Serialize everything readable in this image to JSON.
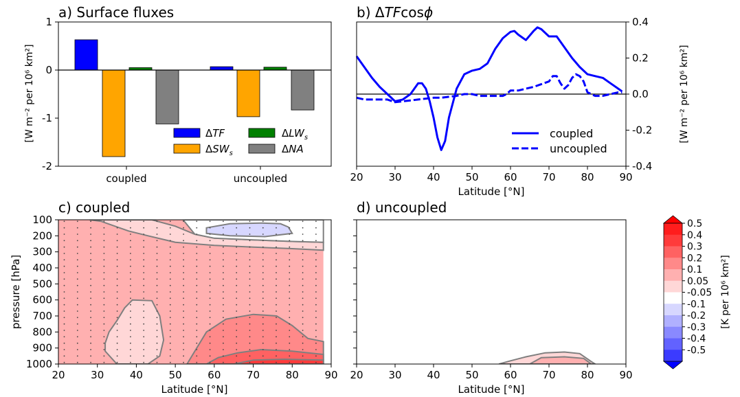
{
  "colors": {
    "tf": "#0000ff",
    "sw": "#ffa500",
    "lw": "#008000",
    "na": "#808080",
    "zero": "#000000",
    "contour_line": "#7f7f7f",
    "dot": "#444444"
  },
  "chart_data": [
    {
      "type": "bar",
      "title": "a) Surface fluxes",
      "ylabel": "[W m⁻² per 10⁶ km²]",
      "ylim": [
        -2,
        1
      ],
      "yticks": [
        {
          "v": 1,
          "t": "1"
        },
        {
          "v": 0,
          "t": "0"
        },
        {
          "v": -1,
          "t": "-1"
        },
        {
          "v": -2,
          "t": "-2"
        }
      ],
      "categories": [
        "coupled",
        "uncoupled"
      ],
      "series": [
        {
          "key": "tf",
          "name": "ΔTF",
          "values": [
            0.63,
            0.07
          ]
        },
        {
          "key": "sw",
          "name": "ΔSWs",
          "values": [
            -1.8,
            -0.97
          ]
        },
        {
          "key": "lw",
          "name": "ΔLWs",
          "values": [
            0.05,
            0.06
          ]
        },
        {
          "key": "na",
          "name": "ΔNA",
          "values": [
            -1.12,
            -0.83
          ]
        }
      ],
      "legend": {
        "placement": "lower-right",
        "tf": "ΔTF",
        "sw": "ΔSWs",
        "lw": "ΔLWs",
        "na": "ΔNA"
      }
    },
    {
      "type": "line",
      "title": "b) ΔTFcosϕ",
      "xlabel": "Latitude [°N]",
      "ylabel": "[W m⁻² per 10⁶ km²]",
      "xlim": [
        20,
        90
      ],
      "ylim": [
        -0.4,
        0.4
      ],
      "xticks": [
        {
          "v": 20,
          "t": "20"
        },
        {
          "v": 30,
          "t": "30"
        },
        {
          "v": 40,
          "t": "40"
        },
        {
          "v": 50,
          "t": "50"
        },
        {
          "v": 60,
          "t": "60"
        },
        {
          "v": 70,
          "t": "70"
        },
        {
          "v": 80,
          "t": "80"
        },
        {
          "v": 90,
          "t": "90"
        }
      ],
      "yticks": [
        {
          "v": 0.4,
          "t": "0.4"
        },
        {
          "v": 0.2,
          "t": "0.2"
        },
        {
          "v": 0.0,
          "t": "0.0"
        },
        {
          "v": -0.2,
          "t": "-0.2"
        },
        {
          "v": -0.4,
          "t": "-0.4"
        }
      ],
      "legend": {
        "placement": "lower-right",
        "coupled": "coupled",
        "uncoupled": "uncoupled"
      },
      "series": [
        {
          "name": "coupled",
          "style": "solid",
          "x": [
            20,
            22,
            24,
            26,
            28,
            30,
            32,
            34,
            36,
            37,
            38,
            39,
            40,
            41,
            42,
            43,
            44,
            46,
            48,
            50,
            52,
            54,
            56,
            58,
            60,
            61,
            62,
            64,
            66,
            67,
            68,
            70,
            72,
            74,
            76,
            78,
            80,
            82,
            84,
            86,
            88,
            89
          ],
          "y": [
            0.21,
            0.15,
            0.09,
            0.04,
            0.0,
            -0.04,
            -0.03,
            0.0,
            0.06,
            0.06,
            0.03,
            -0.04,
            -0.13,
            -0.24,
            -0.31,
            -0.26,
            -0.13,
            0.03,
            0.11,
            0.13,
            0.14,
            0.17,
            0.25,
            0.31,
            0.345,
            0.35,
            0.33,
            0.3,
            0.35,
            0.37,
            0.36,
            0.32,
            0.32,
            0.26,
            0.2,
            0.15,
            0.11,
            0.1,
            0.09,
            0.06,
            0.03,
            0.015
          ]
        },
        {
          "name": "uncoupled",
          "style": "dashed",
          "x": [
            20,
            22,
            24,
            26,
            28,
            30,
            32,
            34,
            36,
            38,
            40,
            42,
            44,
            46,
            48,
            50,
            52,
            54,
            56,
            58,
            59,
            60,
            62,
            64,
            66,
            68,
            70,
            71,
            72,
            73,
            74,
            75,
            76,
            77,
            78,
            79,
            80,
            82,
            84,
            86,
            88,
            89
          ],
          "y": [
            -0.02,
            -0.03,
            -0.03,
            -0.03,
            -0.03,
            -0.045,
            -0.04,
            -0.035,
            -0.03,
            -0.025,
            -0.02,
            -0.02,
            -0.015,
            -0.01,
            0.0,
            0.0,
            -0.01,
            -0.01,
            -0.01,
            -0.01,
            0.0,
            0.02,
            0.02,
            0.03,
            0.04,
            0.055,
            0.07,
            0.1,
            0.1,
            0.06,
            0.03,
            0.05,
            0.09,
            0.11,
            0.1,
            0.07,
            0.01,
            -0.01,
            -0.01,
            0.0,
            0.01,
            0.01
          ]
        }
      ]
    },
    {
      "type": "heatmap",
      "title": "c) coupled",
      "xlabel": "Latitude [°N]",
      "ylabel": "pressure [hPa]",
      "xlim": [
        20,
        90
      ],
      "ylim": [
        1000,
        100
      ],
      "data_x_range": [
        20,
        88
      ],
      "xticks": [
        {
          "v": 20,
          "t": "20"
        },
        {
          "v": 30,
          "t": "30"
        },
        {
          "v": 40,
          "t": "40"
        },
        {
          "v": 50,
          "t": "50"
        },
        {
          "v": 60,
          "t": "60"
        },
        {
          "v": 70,
          "t": "70"
        },
        {
          "v": 80,
          "t": "80"
        },
        {
          "v": 90,
          "t": "90"
        }
      ],
      "yticks": [
        {
          "v": 100,
          "t": "100"
        },
        {
          "v": 200,
          "t": "200"
        },
        {
          "v": 300,
          "t": "300"
        },
        {
          "v": 400,
          "t": "400"
        },
        {
          "v": 500,
          "t": "500"
        },
        {
          "v": 600,
          "t": "600"
        },
        {
          "v": 700,
          "t": "700"
        },
        {
          "v": 800,
          "t": "800"
        },
        {
          "v": 900,
          "t": "900"
        },
        {
          "v": 1000,
          "t": "1000"
        }
      ],
      "base_level": 0.15,
      "regions": [
        {
          "level": 0.075,
          "pts": [
            [
              35,
              100
            ],
            [
              44,
              100
            ],
            [
              50,
              140
            ],
            [
              55,
              190
            ],
            [
              60,
              215
            ],
            [
              70,
              225
            ],
            [
              80,
              235
            ],
            [
              88,
              240
            ],
            [
              88,
              290
            ],
            [
              80,
              280
            ],
            [
              70,
              270
            ],
            [
              60,
              260
            ],
            [
              50,
              240
            ],
            [
              43,
              200
            ],
            [
              38,
              170
            ],
            [
              31,
              110
            ],
            [
              28,
              100
            ]
          ]
        },
        {
          "level": 0,
          "pts": [
            [
              52,
              100
            ],
            [
              88,
              100
            ],
            [
              88,
              240
            ],
            [
              80,
              235
            ],
            [
              70,
              225
            ],
            [
              60,
              215
            ],
            [
              55,
              190
            ]
          ]
        },
        {
          "level": -0.075,
          "pts": [
            [
              58,
              150
            ],
            [
              64,
              125
            ],
            [
              72,
              120
            ],
            [
              77,
              125
            ],
            [
              79,
              145
            ],
            [
              80,
              185
            ],
            [
              73,
              205
            ],
            [
              64,
              200
            ],
            [
              58,
              185
            ]
          ]
        },
        {
          "level": 0.075,
          "pts": [
            [
              39,
              600
            ],
            [
              44,
              605
            ],
            [
              46,
              700
            ],
            [
              47,
              850
            ],
            [
              46,
              950
            ],
            [
              43,
              1000
            ],
            [
              35,
              1000
            ],
            [
              32,
              920
            ],
            [
              32,
              870
            ],
            [
              33,
              800
            ],
            [
              35,
              730
            ],
            [
              37,
              650
            ]
          ]
        },
        {
          "level": 0.25,
          "pts": [
            [
              53,
              1000
            ],
            [
              58,
              800
            ],
            [
              63,
              720
            ],
            [
              70,
              690
            ],
            [
              76,
              700
            ],
            [
              80,
              760
            ],
            [
              84,
              840
            ],
            [
              88,
              860
            ],
            [
              88,
              1000
            ]
          ]
        },
        {
          "level": 0.35,
          "pts": [
            [
              58,
              1000
            ],
            [
              61,
              960
            ],
            [
              66,
              930
            ],
            [
              72,
              910
            ],
            [
              80,
              920
            ],
            [
              88,
              940
            ],
            [
              88,
              1000
            ]
          ]
        },
        {
          "level": 0.45,
          "pts": [
            [
              65,
              1000
            ],
            [
              70,
              975
            ],
            [
              78,
              970
            ],
            [
              88,
              975
            ],
            [
              88,
              1000
            ]
          ]
        }
      ],
      "stipple": {
        "x_step": 3.4,
        "p_step": 40
      }
    },
    {
      "type": "heatmap",
      "title": "d) uncoupled",
      "xlabel": "Latitude [°N]",
      "xlim": [
        20,
        90
      ],
      "ylim": [
        1000,
        100
      ],
      "data_x_range": [
        20,
        88
      ],
      "xticks": [
        {
          "v": 20,
          "t": "20"
        },
        {
          "v": 30,
          "t": "30"
        },
        {
          "v": 40,
          "t": "40"
        },
        {
          "v": 50,
          "t": "50"
        },
        {
          "v": 60,
          "t": "60"
        },
        {
          "v": 70,
          "t": "70"
        },
        {
          "v": 80,
          "t": "80"
        },
        {
          "v": 90,
          "t": "90"
        }
      ],
      "base_level": 0,
      "regions": [
        {
          "level": 0.075,
          "pts": [
            [
              57,
              1000
            ],
            [
              60,
              980
            ],
            [
              64,
              955
            ],
            [
              69,
              930
            ],
            [
              74,
              925
            ],
            [
              78,
              935
            ],
            [
              81,
              985
            ],
            [
              82,
              1000
            ]
          ]
        },
        {
          "level": 0.15,
          "pts": [
            [
              65,
              1000
            ],
            [
              68,
              960
            ],
            [
              74,
              955
            ],
            [
              79,
              965
            ],
            [
              81,
              1000
            ]
          ]
        }
      ]
    },
    {
      "type": "colorbar",
      "ylabel": "[K per 10⁶ km²]",
      "levels": [
        {
          "label": "0.5",
          "color": "#ff1d1d"
        },
        {
          "label": "0.4",
          "color": "#ff3b3b"
        },
        {
          "label": "0.3",
          "color": "#ff6262"
        },
        {
          "label": "0.2",
          "color": "#ff8989"
        },
        {
          "label": "0.1",
          "color": "#ffb0b0"
        },
        {
          "label": "0.05",
          "color": "#ffd7d7"
        },
        {
          "label": "-0.05",
          "color": "#ffffff"
        },
        {
          "label": "-0.1",
          "color": "#d7d7ff"
        },
        {
          "label": "-0.2",
          "color": "#b0b0ff"
        },
        {
          "label": "-0.3",
          "color": "#8989ff"
        },
        {
          "label": "-0.4",
          "color": "#6262ff"
        },
        {
          "label": "-0.5",
          "color": "#3b3bff"
        }
      ],
      "extend_top_color": "#ff0000",
      "extend_bottom_color": "#0000ff",
      "level_colors": [
        {
          "level": 0.45,
          "color": "#ff3b3b"
        },
        {
          "level": 0.35,
          "color": "#ff6262"
        },
        {
          "level": 0.25,
          "color": "#ff8989"
        },
        {
          "level": 0.15,
          "color": "#ffb0b0"
        },
        {
          "level": 0.075,
          "color": "#ffd7d7"
        },
        {
          "level": 0,
          "color": "#ffffff"
        },
        {
          "level": -0.075,
          "color": "#d7d7ff"
        }
      ]
    }
  ]
}
